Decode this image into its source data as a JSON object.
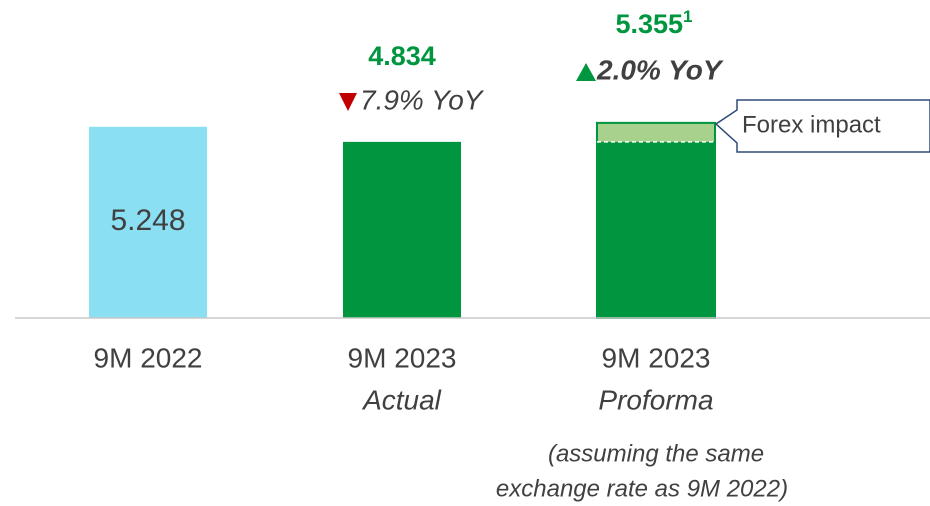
{
  "chart_data": {
    "type": "bar",
    "categories": [
      "9M 2022",
      "9M 2023",
      "9M 2023"
    ],
    "category_sublabels": [
      null,
      "Actual",
      "Proforma"
    ],
    "category_note": [
      "(assuming the same",
      "exchange rate as 9M 2022)"
    ],
    "values": [
      5.248,
      4.834,
      5.355
    ],
    "colors": [
      "#8adff2",
      "#00963f",
      "#00963f"
    ],
    "value_label_footnote": "1",
    "yoy_labels": [
      null,
      "7.9% YoY",
      "2.0% YoY"
    ],
    "yoy_directions": [
      null,
      "down",
      "up"
    ],
    "yoy_colors": [
      null,
      "#c00000",
      "#00963f"
    ],
    "forex_label": "Forex impact",
    "forex_color": "#a9d18e",
    "ylim": [
      0,
      8.7
    ],
    "grid": false
  }
}
